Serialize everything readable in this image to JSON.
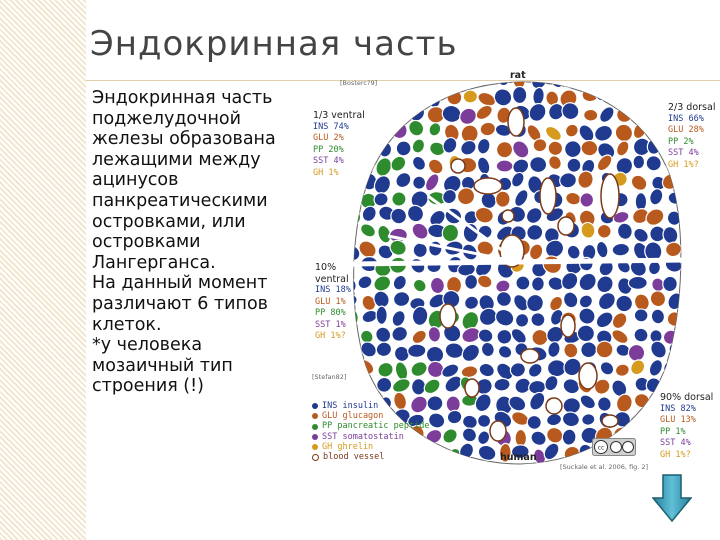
{
  "slide": {
    "title": "Эндокринная часть",
    "body_lines": [
      "Эндокринная часть",
      "поджелудочной",
      "железы образована",
      "лежащими между",
      "ацинусов",
      "панкреатическими",
      "островками, или",
      "островками",
      "Лангерганса.",
      "На данный момент",
      "различают 6 типов",
      "клеток.",
      "*у человека",
      "мозаичный тип",
      "строения (!)"
    ]
  },
  "figure": {
    "ref_top": "[Bosterc?9]",
    "ref_mid": "[Stefan82]",
    "ref_bottom": "[Suckale et al. 2006, fig. 2]",
    "rat_label": "rat",
    "human_label": "human",
    "ventral_third": {
      "title": "1/3 ventral",
      "rows": [
        "INS 74%",
        "GLU  2%",
        "PP  20%",
        "SST  4%",
        "GH   1%"
      ]
    },
    "dorsal_two_thirds": {
      "title": "2/3 dorsal",
      "rows": [
        "INS 66%",
        "GLU 28%",
        "PP   2%",
        "SST  4%",
        "GH   1%?"
      ]
    },
    "ventral_10": {
      "title": "10%",
      "subtitle": "ventral",
      "rows": [
        "INS 18%",
        "GLU  1%",
        "PP  80%",
        "SST  1%",
        "GH   1%?"
      ]
    },
    "dorsal_90": {
      "title": "90% dorsal",
      "rows": [
        "INS 82%",
        "GLU 13%",
        "PP   1%",
        "SST  4%",
        "GH   1%?"
      ]
    },
    "legend": [
      {
        "text": "INS insulin",
        "color": "#1f3a8f"
      },
      {
        "text": "GLU glucagon",
        "color": "#b85a1e"
      },
      {
        "text": "PP  pancreatic peptide",
        "color": "#2e8b2e"
      },
      {
        "text": "SST somatostatin",
        "color": "#7b3c9a"
      },
      {
        "text": "GH  ghrelin",
        "color": "#d59a1e"
      },
      {
        "text": "blood vessel",
        "color": "#ffffff"
      }
    ],
    "cell_colors": {
      "ins": "#1f3a8f",
      "glu": "#b85a1e",
      "pp": "#2e8b2e",
      "sst": "#7b3c9a",
      "gh": "#d59a1e"
    }
  }
}
